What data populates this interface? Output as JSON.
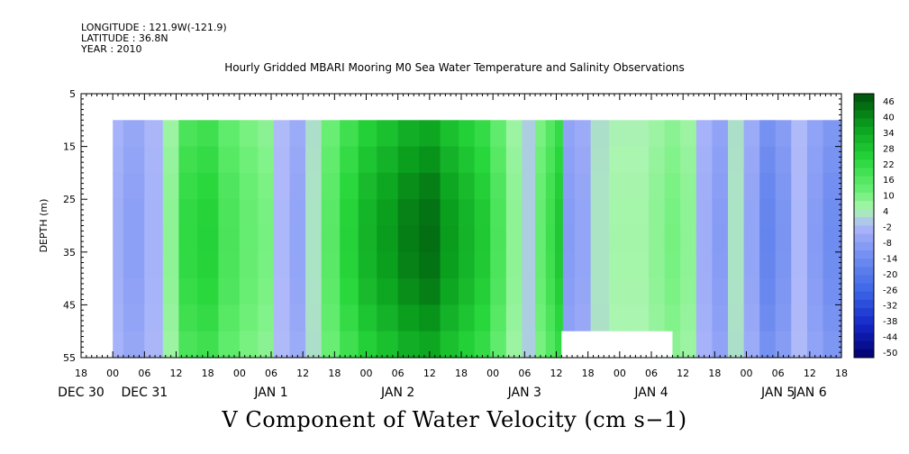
{
  "header": {
    "longitude": "LONGITUDE : 121.9W(-121.9)",
    "latitude": "LATITUDE : 36.8N",
    "year": "YEAR : 2010",
    "title": "Hourly Gridded MBARI Mooring M0 Sea Water Temperature and Salinity Observations"
  },
  "footer": {
    "variable": "V Component of Water Velocity (cm s−1)"
  },
  "chart_data": {
    "type": "heatmap",
    "title": "Hourly Gridded MBARI Mooring M0 Sea Water Temperature and Salinity Observations",
    "ylabel": "DEPTH (m)",
    "xlabel": "",
    "x_range_hours": [
      -6,
      138
    ],
    "ylim": [
      55,
      5
    ],
    "y_ticks": [
      5,
      15,
      25,
      35,
      45,
      55
    ],
    "x_hour_ticks": [
      {
        "h": -6,
        "label": "18"
      },
      {
        "h": 0,
        "label": "00"
      },
      {
        "h": 6,
        "label": "06"
      },
      {
        "h": 12,
        "label": "12"
      },
      {
        "h": 18,
        "label": "18"
      },
      {
        "h": 24,
        "label": "00"
      },
      {
        "h": 30,
        "label": "06"
      },
      {
        "h": 36,
        "label": "12"
      },
      {
        "h": 42,
        "label": "18"
      },
      {
        "h": 48,
        "label": "00"
      },
      {
        "h": 54,
        "label": "06"
      },
      {
        "h": 60,
        "label": "12"
      },
      {
        "h": 66,
        "label": "18"
      },
      {
        "h": 72,
        "label": "00"
      },
      {
        "h": 78,
        "label": "06"
      },
      {
        "h": 84,
        "label": "12"
      },
      {
        "h": 90,
        "label": "18"
      },
      {
        "h": 96,
        "label": "00"
      },
      {
        "h": 102,
        "label": "06"
      },
      {
        "h": 108,
        "label": "12"
      },
      {
        "h": 114,
        "label": "18"
      },
      {
        "h": 120,
        "label": "00"
      },
      {
        "h": 126,
        "label": "06"
      },
      {
        "h": 132,
        "label": "12"
      },
      {
        "h": 138,
        "label": "18"
      }
    ],
    "x_day_labels": [
      {
        "h": -6,
        "label": "DEC 30"
      },
      {
        "h": 6,
        "label": "DEC 31"
      },
      {
        "h": 30,
        "label": "JAN  1"
      },
      {
        "h": 54,
        "label": "JAN  2"
      },
      {
        "h": 78,
        "label": "JAN  3"
      },
      {
        "h": 102,
        "label": "JAN  4"
      },
      {
        "h": 126,
        "label": "JAN  5"
      },
      {
        "h": 150,
        "label": "JAN  6"
      }
    ],
    "colorbar": {
      "min": -50,
      "max": 46,
      "step": 3,
      "labels": [
        "46",
        "40",
        "34",
        "28",
        "22",
        "16",
        "10",
        "4",
        "-2",
        "-8",
        "-14",
        "-20",
        "-26",
        "-32",
        "-38",
        "-44",
        "-50"
      ]
    },
    "data_depth_range": [
      10,
      55
    ],
    "profiles": [
      {
        "h": 0,
        "v": -4
      },
      {
        "h": 4,
        "v": -7
      },
      {
        "h": 8,
        "v": -3
      },
      {
        "h": 11,
        "v": 6
      },
      {
        "h": 14,
        "v": 18
      },
      {
        "h": 18,
        "v": 20
      },
      {
        "h": 22,
        "v": 14
      },
      {
        "h": 26,
        "v": 10
      },
      {
        "h": 29,
        "v": 8
      },
      {
        "h": 32,
        "v": -2
      },
      {
        "h": 35,
        "v": -6
      },
      {
        "h": 38,
        "v": 2
      },
      {
        "h": 41,
        "v": 12
      },
      {
        "h": 45,
        "v": 20
      },
      {
        "h": 48,
        "v": 26
      },
      {
        "h": 52,
        "v": 30
      },
      {
        "h": 56,
        "v": 34
      },
      {
        "h": 60,
        "v": 36
      },
      {
        "h": 64,
        "v": 30
      },
      {
        "h": 67,
        "v": 26
      },
      {
        "h": 70,
        "v": 22
      },
      {
        "h": 73,
        "v": 14
      },
      {
        "h": 76,
        "v": 6
      },
      {
        "h": 79,
        "v": 0
      },
      {
        "h": 81,
        "v": 10
      },
      {
        "h": 83,
        "v": 16
      },
      {
        "h": 84.5,
        "v": 22
      },
      {
        "h": 86,
        "v": -8
      },
      {
        "h": 89,
        "v": -6
      },
      {
        "h": 92,
        "v": 2
      },
      {
        "h": 96,
        "v": 4
      },
      {
        "h": 100,
        "v": 4
      },
      {
        "h": 103,
        "v": 6
      },
      {
        "h": 106,
        "v": 8
      },
      {
        "h": 109,
        "v": 6
      },
      {
        "h": 112,
        "v": -4
      },
      {
        "h": 115,
        "v": -8
      },
      {
        "h": 118,
        "v": 2
      },
      {
        "h": 121,
        "v": -6
      },
      {
        "h": 124,
        "v": -14
      },
      {
        "h": 127,
        "v": -10
      },
      {
        "h": 130,
        "v": -2
      },
      {
        "h": 133,
        "v": -8
      },
      {
        "h": 136,
        "v": -12
      }
    ],
    "missing_regions": [
      {
        "h_start": 85,
        "h_end": 106,
        "depth_start": 50,
        "depth_end": 55
      }
    ],
    "grid": false,
    "legend": "right"
  }
}
